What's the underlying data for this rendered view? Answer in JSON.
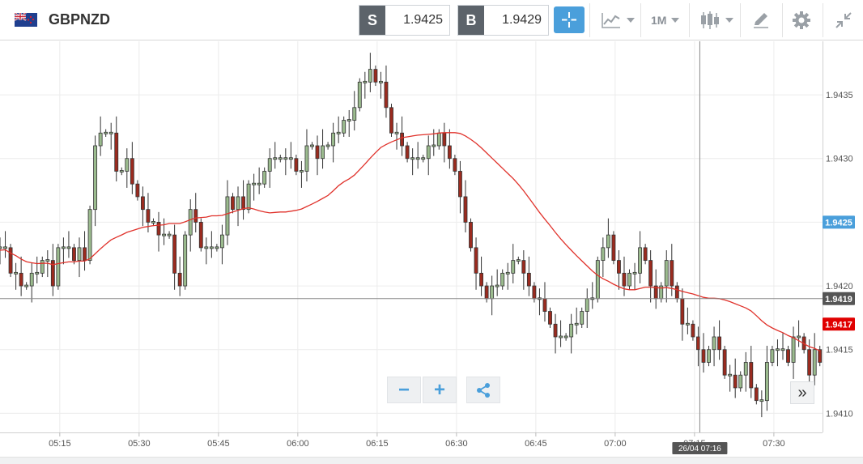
{
  "instrument": {
    "symbol": "GBPNZD",
    "flag_icon": "gb-nz-flag-icon"
  },
  "quotes": {
    "sell_label": "S",
    "sell_value": "1.9425",
    "buy_label": "B",
    "buy_value": "1.9429"
  },
  "toolbar": {
    "crosshair_icon": "crosshair-icon",
    "chart_type_icon": "line-chart-icon",
    "timeframe_label": "1M",
    "candle_icon": "candlestick-icon",
    "draw_icon": "drawing-pen-icon",
    "settings_icon": "gear-icon",
    "collapse_icon": "collapse-arrows-icon"
  },
  "colors": {
    "bull": "#9bbb8e",
    "bear": "#9b2b1f",
    "ma": "#e0322b",
    "accent": "#4a9fdb",
    "price_tag_blue": "#4a9fdb",
    "price_tag_red": "#e00000",
    "crosshair_tag": "#555555"
  },
  "price_tags": {
    "bid": "1.9425",
    "crosshair": "1.9419",
    "ma": "1.9417"
  },
  "crosshair": {
    "time_label": "26/04 07:16",
    "price": 1.9419
  },
  "chart_data": {
    "type": "candlestick",
    "timeframe": "1M",
    "y_ticks": [
      "1.9435",
      "1.9430",
      "1.9425",
      "1.9420",
      "1.9415",
      "1.9410"
    ],
    "ylim": [
      1.94085,
      1.94392
    ],
    "x_ticks": [
      "05:15",
      "05:30",
      "05:45",
      "06:00",
      "06:15",
      "06:30",
      "06:45",
      "07:00",
      "07:15",
      "07:30"
    ],
    "x_tick_minutes": [
      315,
      330,
      345,
      360,
      375,
      390,
      405,
      420,
      435,
      450
    ],
    "xlim_minutes": [
      303.7,
      459.2
    ],
    "closes": [
      1.9423,
      1.9422,
      1.9423,
      1.9423,
      1.9423,
      1.9423,
      1.9421,
      1.9421,
      1.942,
      1.942,
      1.9421,
      1.9421,
      1.9422,
      1.9422,
      1.942,
      1.9423,
      1.9423,
      1.9423,
      1.9422,
      1.9423,
      1.9422,
      1.9426,
      1.9431,
      1.9432,
      1.9432,
      1.9432,
      1.9429,
      1.9429,
      1.943,
      1.9428,
      1.9427,
      1.9426,
      1.9425,
      1.9425,
      1.9424,
      1.9424,
      1.9424,
      1.9421,
      1.942,
      1.9424,
      1.9426,
      1.9425,
      1.9423,
      1.9423,
      1.9423,
      1.9423,
      1.9424,
      1.9427,
      1.9426,
      1.9427,
      1.9426,
      1.9428,
      1.9428,
      1.9428,
      1.9429,
      1.943,
      1.943,
      1.943,
      1.943,
      1.943,
      1.9429,
      1.9429,
      1.9431,
      1.9431,
      1.943,
      1.9431,
      1.9431,
      1.9432,
      1.9432,
      1.9433,
      1.9433,
      1.9434,
      1.9436,
      1.9436,
      1.9437,
      1.9436,
      1.9436,
      1.9434,
      1.9432,
      1.9432,
      1.9431,
      1.943,
      1.943,
      1.943,
      1.943,
      1.9431,
      1.9431,
      1.9432,
      1.9431,
      1.943,
      1.9429,
      1.9427,
      1.9425,
      1.9423,
      1.9421,
      1.942,
      1.9419,
      1.942,
      1.942,
      1.9421,
      1.9421,
      1.9422,
      1.9422,
      1.9421,
      1.942,
      1.9419,
      1.9419,
      1.9418,
      1.9417,
      1.9416,
      1.9416,
      1.9416,
      1.9417,
      1.9417,
      1.9418,
      1.9419,
      1.9419,
      1.9422,
      1.9423,
      1.9424,
      1.9422,
      1.9421,
      1.942,
      1.9421,
      1.9421,
      1.9423,
      1.9422,
      1.942,
      1.9419,
      1.942,
      1.9422,
      1.942,
      1.9419,
      1.9417,
      1.9417,
      1.9416,
      1.9415,
      1.9414,
      1.9415,
      1.9416,
      1.9415,
      1.9413,
      1.9413,
      1.9412,
      1.9413,
      1.9414,
      1.9412,
      1.9411,
      1.9411,
      1.9414,
      1.9415,
      1.9415,
      1.9415,
      1.9414,
      1.9416,
      1.9416,
      1.9415,
      1.9413,
      1.9415,
      1.9414
    ],
    "ma_period": 30
  }
}
